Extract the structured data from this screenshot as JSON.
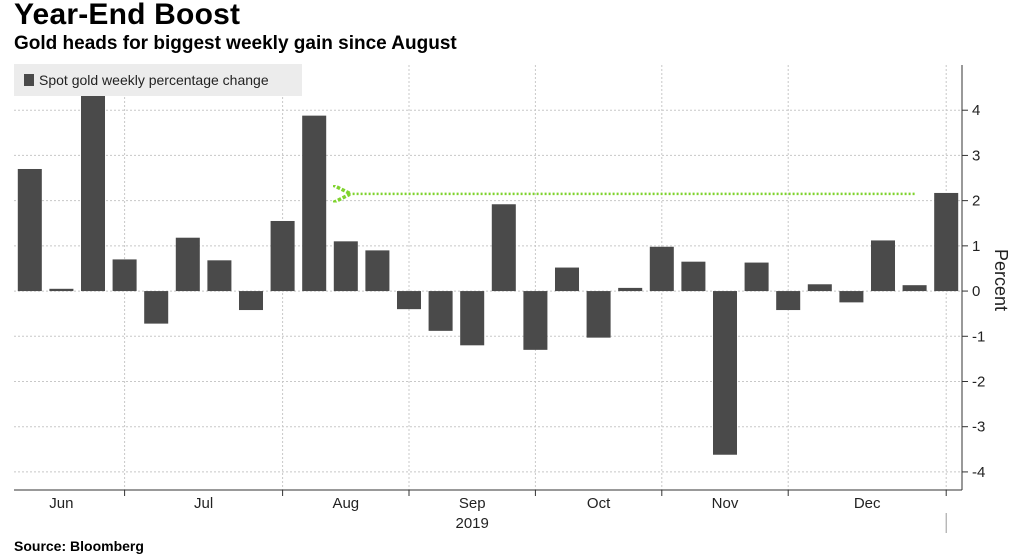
{
  "header": {
    "title": "Year-End Boost",
    "subtitle": "Gold heads for biggest weekly gain since August"
  },
  "source": "Source: Bloomberg",
  "chart_data": {
    "type": "bar",
    "ylabel": "Percent",
    "ylim": [
      -4.4,
      5
    ],
    "yticks": [
      -4,
      -3,
      -2,
      -1,
      0,
      1,
      2,
      3,
      4
    ],
    "legend": {
      "label": "Spot gold weekly percentage change",
      "position": "top-left"
    },
    "series": [
      {
        "name": "Spot gold weekly percentage change",
        "color": "#4a4a4a",
        "values": [
          2.7,
          0.05,
          4.32,
          0.7,
          -0.72,
          1.18,
          0.68,
          -0.42,
          1.55,
          3.88,
          1.1,
          0.9,
          -0.4,
          -0.88,
          -1.2,
          1.92,
          -1.3,
          0.52,
          -1.03,
          0.07,
          0.98,
          0.65,
          -3.62,
          0.63,
          -0.42,
          0.15,
          -0.25,
          1.12,
          0.13,
          2.17
        ]
      }
    ],
    "x_month_labels": [
      "Jun",
      "Jul",
      "Aug",
      "Sep",
      "Oct",
      "Nov",
      "Dec"
    ],
    "x_year_label": "2019",
    "annotation": {
      "type": "dotted-arrow",
      "color": "#7fd32e",
      "y_value": 2.15,
      "direction": "left"
    },
    "grid": true
  }
}
